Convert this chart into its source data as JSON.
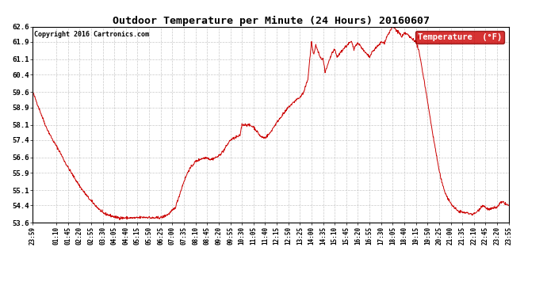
{
  "title": "Outdoor Temperature per Minute (24 Hours) 20160607",
  "copyright": "Copyright 2016 Cartronics.com",
  "legend_label": "Temperature  (°F)",
  "line_color": "#cc0000",
  "legend_bg": "#cc0000",
  "legend_text_color": "#ffffff",
  "background_color": "#ffffff",
  "grid_color": "#bbbbbb",
  "ylim": [
    53.6,
    62.6
  ],
  "yticks": [
    53.6,
    54.4,
    55.1,
    55.9,
    56.6,
    57.4,
    58.1,
    58.9,
    59.6,
    60.4,
    61.1,
    61.9,
    62.6
  ],
  "x_labels": [
    "23:59",
    "01:10",
    "01:45",
    "02:20",
    "02:55",
    "03:30",
    "04:05",
    "04:40",
    "05:15",
    "05:50",
    "06:25",
    "07:00",
    "07:35",
    "08:10",
    "08:45",
    "09:20",
    "09:55",
    "10:30",
    "11:05",
    "11:40",
    "12:15",
    "12:50",
    "13:25",
    "14:00",
    "14:35",
    "15:10",
    "15:45",
    "16:20",
    "16:55",
    "17:30",
    "18:05",
    "18:40",
    "19:15",
    "19:50",
    "20:25",
    "21:00",
    "21:35",
    "22:10",
    "22:45",
    "23:20",
    "23:55"
  ],
  "x_tick_positions": [
    0,
    71,
    106,
    141,
    176,
    211,
    246,
    281,
    316,
    351,
    386,
    421,
    456,
    491,
    526,
    561,
    596,
    631,
    666,
    701,
    736,
    771,
    806,
    841,
    876,
    911,
    946,
    981,
    1016,
    1051,
    1086,
    1121,
    1156,
    1191,
    1226,
    1261,
    1296,
    1331,
    1366,
    1401,
    1436
  ],
  "temperature_keypoints": [
    [
      0,
      59.6
    ],
    [
      20,
      58.8
    ],
    [
      40,
      58.0
    ],
    [
      60,
      57.4
    ],
    [
      80,
      56.9
    ],
    [
      100,
      56.3
    ],
    [
      120,
      55.8
    ],
    [
      145,
      55.2
    ],
    [
      170,
      54.7
    ],
    [
      195,
      54.3
    ],
    [
      211,
      54.05
    ],
    [
      230,
      53.95
    ],
    [
      250,
      53.85
    ],
    [
      270,
      53.82
    ],
    [
      290,
      53.82
    ],
    [
      310,
      53.82
    ],
    [
      330,
      53.85
    ],
    [
      350,
      53.85
    ],
    [
      356,
      53.82
    ],
    [
      370,
      53.82
    ],
    [
      390,
      53.85
    ],
    [
      410,
      54.0
    ],
    [
      430,
      54.3
    ],
    [
      456,
      55.5
    ],
    [
      470,
      56.0
    ],
    [
      490,
      56.4
    ],
    [
      510,
      56.55
    ],
    [
      526,
      56.6
    ],
    [
      535,
      56.5
    ],
    [
      545,
      56.55
    ],
    [
      560,
      56.65
    ],
    [
      575,
      56.9
    ],
    [
      596,
      57.4
    ],
    [
      610,
      57.5
    ],
    [
      625,
      57.6
    ],
    [
      631,
      58.1
    ],
    [
      645,
      58.1
    ],
    [
      658,
      58.05
    ],
    [
      666,
      58.0
    ],
    [
      676,
      57.8
    ],
    [
      688,
      57.55
    ],
    [
      701,
      57.5
    ],
    [
      715,
      57.7
    ],
    [
      725,
      57.95
    ],
    [
      736,
      58.2
    ],
    [
      748,
      58.45
    ],
    [
      762,
      58.7
    ],
    [
      771,
      58.9
    ],
    [
      785,
      59.1
    ],
    [
      795,
      59.25
    ],
    [
      806,
      59.35
    ],
    [
      818,
      59.6
    ],
    [
      830,
      60.2
    ],
    [
      841,
      61.9
    ],
    [
      847,
      61.3
    ],
    [
      854,
      61.75
    ],
    [
      861,
      61.45
    ],
    [
      868,
      61.15
    ],
    [
      876,
      61.1
    ],
    [
      882,
      60.5
    ],
    [
      888,
      60.75
    ],
    [
      896,
      61.1
    ],
    [
      903,
      61.4
    ],
    [
      911,
      61.55
    ],
    [
      918,
      61.2
    ],
    [
      925,
      61.35
    ],
    [
      933,
      61.5
    ],
    [
      941,
      61.65
    ],
    [
      946,
      61.7
    ],
    [
      954,
      61.85
    ],
    [
      962,
      61.9
    ],
    [
      969,
      61.55
    ],
    [
      975,
      61.8
    ],
    [
      981,
      61.85
    ],
    [
      990,
      61.7
    ],
    [
      998,
      61.5
    ],
    [
      1007,
      61.35
    ],
    [
      1016,
      61.2
    ],
    [
      1025,
      61.45
    ],
    [
      1036,
      61.65
    ],
    [
      1044,
      61.75
    ],
    [
      1051,
      61.9
    ],
    [
      1060,
      61.85
    ],
    [
      1070,
      62.2
    ],
    [
      1078,
      62.4
    ],
    [
      1086,
      62.6
    ],
    [
      1092,
      62.52
    ],
    [
      1098,
      62.42
    ],
    [
      1107,
      62.3
    ],
    [
      1113,
      62.1
    ],
    [
      1121,
      62.3
    ],
    [
      1128,
      62.28
    ],
    [
      1136,
      62.15
    ],
    [
      1144,
      62.05
    ],
    [
      1150,
      62.0
    ],
    [
      1156,
      61.9
    ],
    [
      1163,
      61.6
    ],
    [
      1171,
      61.0
    ],
    [
      1180,
      60.2
    ],
    [
      1191,
      59.2
    ],
    [
      1200,
      58.3
    ],
    [
      1210,
      57.4
    ],
    [
      1218,
      56.7
    ],
    [
      1226,
      56.0
    ],
    [
      1235,
      55.4
    ],
    [
      1244,
      55.0
    ],
    [
      1253,
      54.7
    ],
    [
      1261,
      54.5
    ],
    [
      1271,
      54.3
    ],
    [
      1282,
      54.15
    ],
    [
      1295,
      54.08
    ],
    [
      1310,
      54.05
    ],
    [
      1325,
      54.0
    ],
    [
      1331,
      54.0
    ],
    [
      1340,
      54.1
    ],
    [
      1349,
      54.25
    ],
    [
      1356,
      54.4
    ],
    [
      1363,
      54.35
    ],
    [
      1370,
      54.25
    ],
    [
      1378,
      54.2
    ],
    [
      1386,
      54.25
    ],
    [
      1394,
      54.3
    ],
    [
      1401,
      54.3
    ],
    [
      1410,
      54.5
    ],
    [
      1420,
      54.55
    ],
    [
      1428,
      54.45
    ],
    [
      1436,
      54.4
    ]
  ]
}
